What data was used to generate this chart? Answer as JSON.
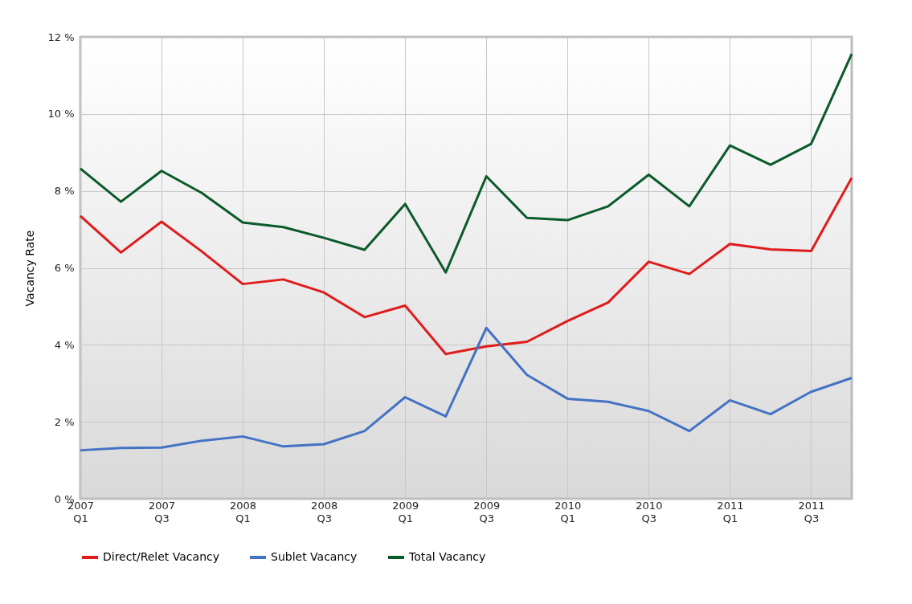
{
  "chart_data": {
    "type": "line",
    "ylabel": "Vacancy Rate",
    "categories": [
      "2007\nQ1",
      null,
      "2007\nQ3",
      null,
      "2008\nQ1",
      null,
      "2008\nQ3",
      null,
      "2009\nQ1",
      null,
      "2009\nQ3",
      null,
      "2010\nQ1",
      null,
      "2010\nQ3",
      null,
      "2011\nQ1",
      null,
      "2011\nQ3",
      null
    ],
    "series": [
      {
        "name": "Direct/Relet Vacancy",
        "color": "#e01b1b",
        "values": [
          7.35,
          6.4,
          7.2,
          6.42,
          5.58,
          5.7,
          5.36,
          4.72,
          5.02,
          3.76,
          3.96,
          4.08,
          4.62,
          5.1,
          6.16,
          5.84,
          6.62,
          6.48,
          6.44,
          8.34
        ]
      },
      {
        "name": "Sublet Vacancy",
        "color": "#4472c4",
        "values": [
          1.26,
          1.32,
          1.33,
          1.51,
          1.62,
          1.36,
          1.42,
          1.76,
          2.64,
          2.14,
          4.44,
          3.22,
          2.6,
          2.52,
          2.28,
          1.76,
          2.56,
          2.2,
          2.78,
          3.14
        ]
      },
      {
        "name": "Total Vacancy",
        "color": "#0b5a2a",
        "values": [
          8.58,
          7.72,
          8.52,
          7.94,
          7.18,
          7.06,
          6.78,
          6.47,
          7.66,
          5.88,
          8.38,
          7.3,
          7.24,
          7.6,
          8.42,
          7.6,
          9.18,
          8.68,
          9.22,
          11.56
        ]
      }
    ],
    "ylim": [
      0,
      12
    ],
    "yticks": [
      {
        "value": 0,
        "label": "0 %"
      },
      {
        "value": 2,
        "label": "2 %"
      },
      {
        "value": 4,
        "label": "4 %"
      },
      {
        "value": 6,
        "label": "6 %"
      },
      {
        "value": 8,
        "label": "8 %"
      },
      {
        "value": 10,
        "label": "10 %"
      },
      {
        "value": 12,
        "label": "12 %"
      }
    ],
    "grid": true,
    "legend": "bottom",
    "marker": "none",
    "line_style": "solid"
  }
}
